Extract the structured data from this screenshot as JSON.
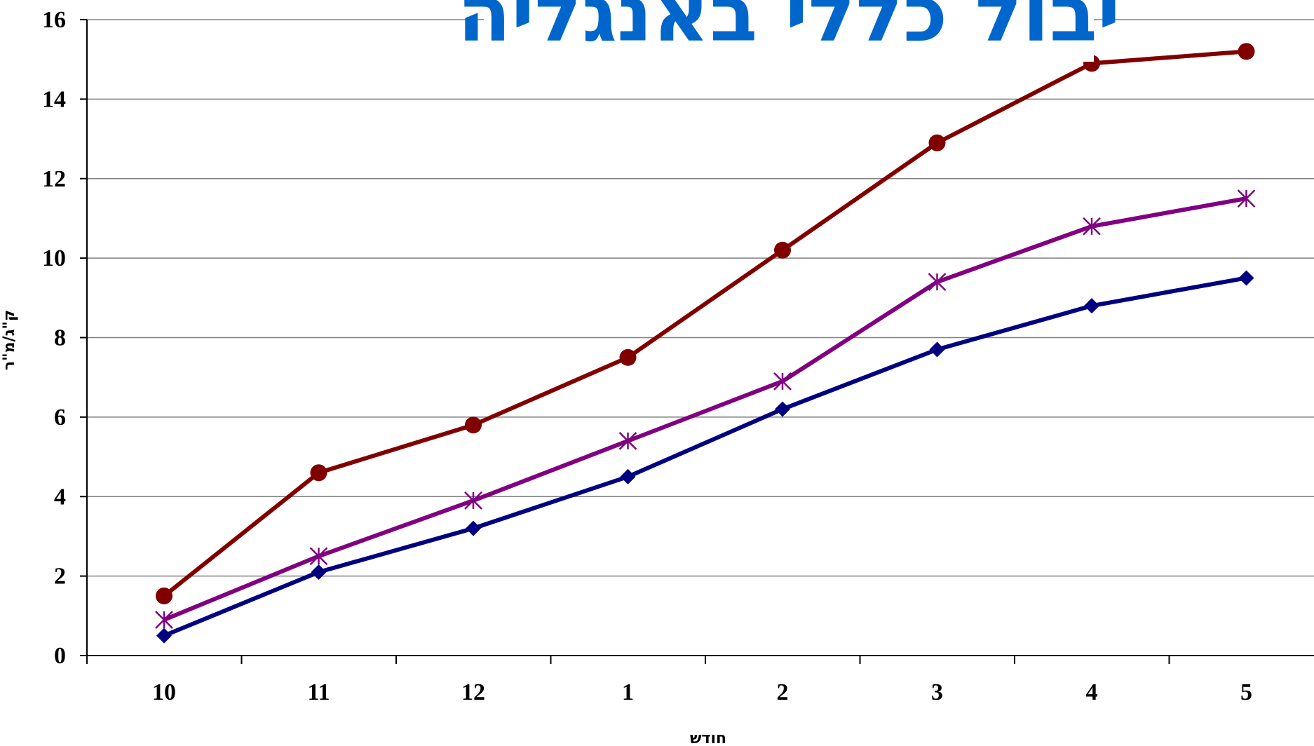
{
  "chart_data": {
    "type": "line",
    "title": "יבול כללי באנגליה",
    "xlabel": "חודש",
    "ylabel": "ק\"ג/מ\"ר",
    "categories": [
      "10",
      "11",
      "12",
      "1",
      "2",
      "3",
      "4",
      "5"
    ],
    "ylim": [
      0,
      16
    ],
    "yticks": [
      "0",
      "2",
      "4",
      "6",
      "8",
      "10",
      "12",
      "14",
      "16"
    ],
    "grid": true,
    "series": [
      {
        "marker": "circle",
        "color": "#800000",
        "values": [
          1.5,
          4.6,
          5.8,
          7.5,
          10.2,
          12.9,
          14.9,
          15.2
        ]
      },
      {
        "marker": "asterisk",
        "color": "#800080",
        "values": [
          0.9,
          2.5,
          3.9,
          5.4,
          6.9,
          9.4,
          10.8,
          11.5
        ]
      },
      {
        "marker": "diamond",
        "color": "#000080",
        "values": [
          0.5,
          2.1,
          3.2,
          4.5,
          6.2,
          7.7,
          8.8,
          9.5
        ]
      }
    ],
    "title_color": "#0066CC"
  }
}
